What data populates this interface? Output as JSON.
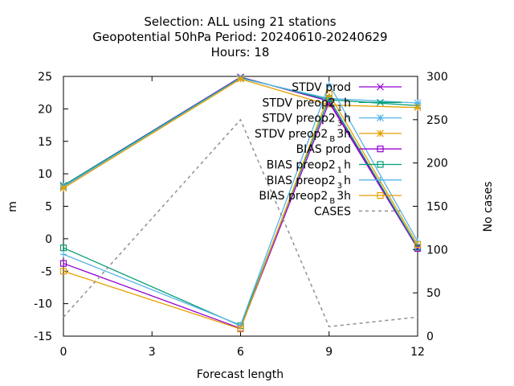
{
  "chart_data": {
    "type": "line",
    "title": [
      "Selection: ALL using    21 stations",
      "Geopotential 50hPa   Period: 20240610-20240629",
      "Hours:  18"
    ],
    "xlabel": "Forecast length",
    "ylabel": "m",
    "y2label": "No cases",
    "x": [
      0,
      6,
      9,
      12
    ],
    "xticks": [
      0,
      3,
      6,
      9,
      12
    ],
    "xlim": [
      0,
      12
    ],
    "ylim": [
      -15,
      25
    ],
    "yticks": [
      -15,
      -10,
      -5,
      0,
      5,
      10,
      15,
      20,
      25
    ],
    "y2lim": [
      0,
      300
    ],
    "y2ticks": [
      0,
      50,
      100,
      150,
      200,
      250,
      300
    ],
    "legend_position": "top-right",
    "grid": false,
    "series": [
      {
        "name": "STDV prod",
        "sub": "",
        "suffix": "",
        "color": "#9400d3",
        "marker": "x",
        "axis": "y",
        "values": [
          8.2,
          24.9,
          21.2,
          -1.4
        ]
      },
      {
        "name": "STDV preop2",
        "sub": "1",
        "suffix": "h",
        "color": "#009e73",
        "marker": "x",
        "axis": "y",
        "values": [
          8.2,
          24.8,
          21.4,
          20.5
        ]
      },
      {
        "name": "STDV preop2",
        "sub": "3",
        "suffix": "h",
        "color": "#56b4e9",
        "marker": "star",
        "axis": "y",
        "values": [
          8.0,
          24.7,
          21.6,
          20.9
        ]
      },
      {
        "name": "STDV preop2",
        "sub": "B",
        "suffix": "3h",
        "color": "#e69f00",
        "marker": "star",
        "axis": "y",
        "values": [
          7.8,
          24.6,
          20.6,
          20.2
        ]
      },
      {
        "name": "BIAS prod",
        "sub": "",
        "suffix": "",
        "color": "#9400d3",
        "marker": "square",
        "axis": "y",
        "values": [
          -3.8,
          -13.8,
          21.0,
          -1.5
        ]
      },
      {
        "name": "BIAS preop2",
        "sub": "1",
        "suffix": "h",
        "color": "#009e73",
        "marker": "square",
        "axis": "y",
        "values": [
          -1.4,
          -13.4,
          21.6,
          -1.3
        ]
      },
      {
        "name": "BIAS preop2",
        "sub": "3",
        "suffix": "h",
        "color": "#56b4e9",
        "marker": "plus",
        "axis": "y",
        "values": [
          -2.4,
          -13.3,
          23.8,
          -0.4
        ]
      },
      {
        "name": "BIAS preop2",
        "sub": "B",
        "suffix": "3h",
        "color": "#e69f00",
        "marker": "square",
        "axis": "y",
        "values": [
          -5.0,
          -13.9,
          22.3,
          -0.9
        ]
      },
      {
        "name": "CASES",
        "sub": "",
        "suffix": "",
        "color": "#909090",
        "marker": "none",
        "dashed": true,
        "axis": "y2",
        "values": [
          22,
          250,
          11,
          22
        ]
      }
    ]
  }
}
